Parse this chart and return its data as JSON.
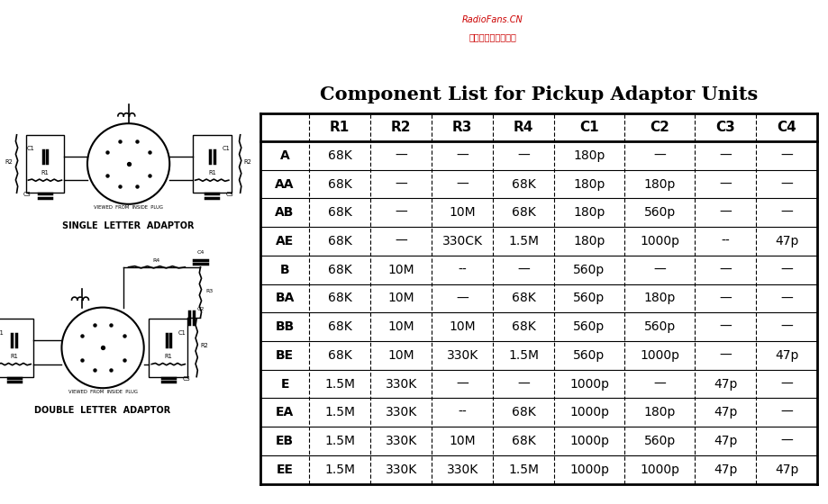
{
  "title": "Component List for Pickup Adaptor Units",
  "watermark_line1": "RadioFans.CN",
  "watermark_line2": "收音机爱好者资料库",
  "headers": [
    "",
    "R1",
    "R2",
    "R3",
    "R4",
    "C1",
    "C2",
    "C3",
    "C4"
  ],
  "rows": [
    [
      "A",
      "68K",
      "—",
      "—",
      "—",
      "180p",
      "—",
      "—",
      "—"
    ],
    [
      "AA",
      "68K",
      "—",
      "—",
      "68K",
      "180p",
      "180p",
      "—",
      "—"
    ],
    [
      "AB",
      "68K",
      "—",
      "10M",
      "68K",
      "180p",
      "560p",
      "—",
      "—"
    ],
    [
      "AE",
      "68K",
      "—",
      "330CK",
      "1.5M",
      "180p",
      "1000p",
      "--",
      "47p"
    ],
    [
      "B",
      "68K",
      "10M",
      "--",
      "—",
      "560p",
      "—",
      "—",
      "—"
    ],
    [
      "BA",
      "68K",
      "10M",
      "—",
      "68K",
      "560p",
      "180p",
      "—",
      "—"
    ],
    [
      "BB",
      "68K",
      "10M",
      "10M",
      "68K",
      "560p",
      "560p",
      "—",
      "—"
    ],
    [
      "BE",
      "68K",
      "10M",
      "330K",
      "1.5M",
      "560p",
      "1000p",
      "—",
      "47p"
    ],
    [
      "E",
      "1.5M",
      "330K",
      "—",
      "—",
      "1000p",
      "—",
      "47p",
      "—"
    ],
    [
      "EA",
      "1.5M",
      "330K",
      "--",
      "68K",
      "1000p",
      "180p",
      "47p",
      "—"
    ],
    [
      "EB",
      "1.5M",
      "330K",
      "10M",
      "68K",
      "1000p",
      "560p",
      "47p",
      "—"
    ],
    [
      "EE",
      "1.5M",
      "330K",
      "330K",
      "1.5M",
      "1000p",
      "1000p",
      "47p",
      "47p"
    ]
  ],
  "bg_color": "#ffffff",
  "table_text_color": "#000000",
  "title_color": "#000000",
  "watermark_color1": "#cc0000",
  "watermark_color2": "#cc0000",
  "circuit_label1": "SINGLE  LETTER  ADAPTOR",
  "circuit_label2": "DOUBLE  LETTER  ADAPTOR",
  "viewed_text": "VIEWED  FROM  INSIDE  PLUG"
}
